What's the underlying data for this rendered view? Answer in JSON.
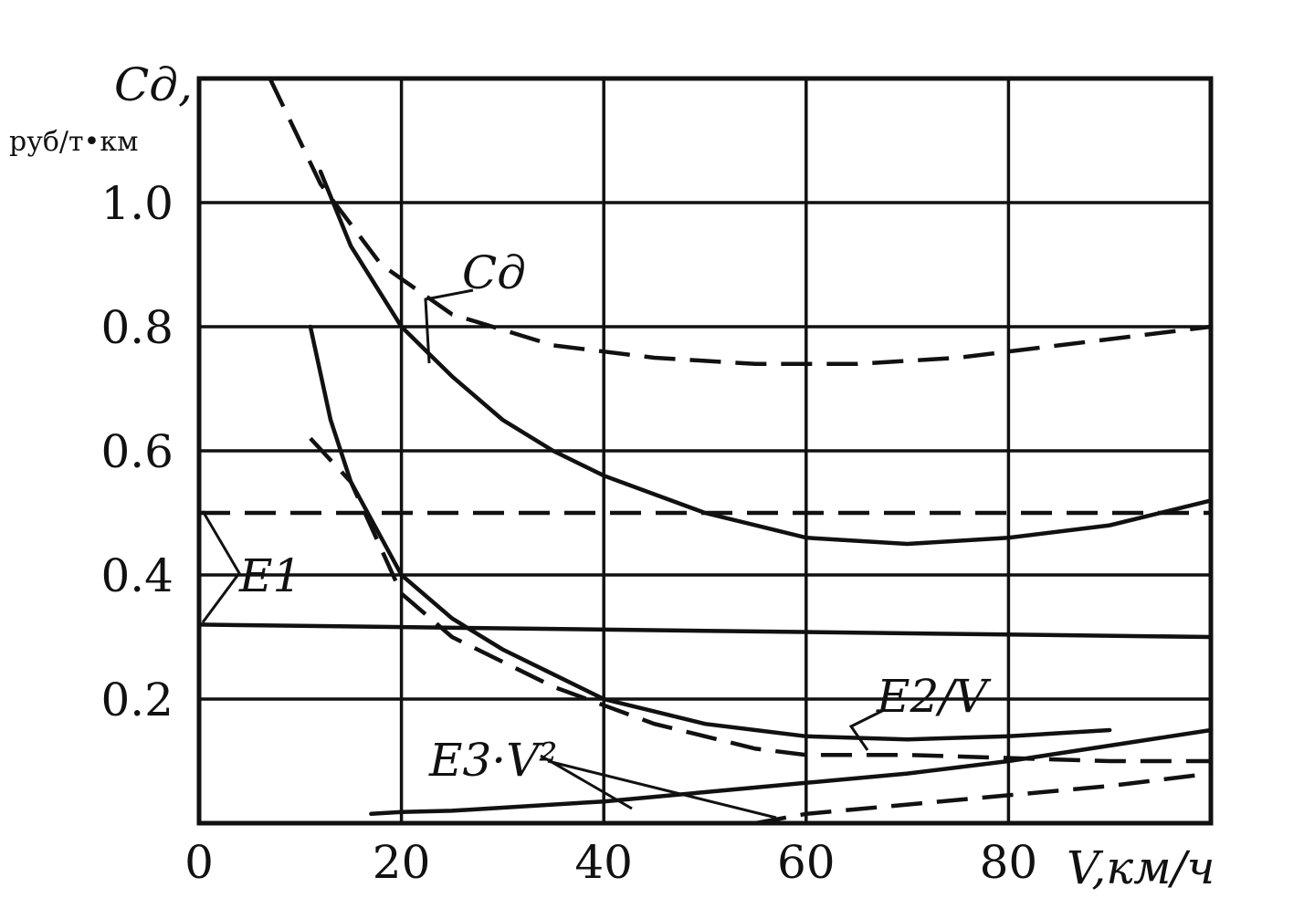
{
  "chart_data": {
    "type": "line",
    "ylabel": "Cд,",
    "yunit": "руб/т•км",
    "xlabel": "V,км/ч",
    "xlim": [
      0,
      100
    ],
    "ylim": [
      0,
      1.2
    ],
    "x_ticks": [
      "0",
      "20",
      "40",
      "60",
      "80"
    ],
    "y_ticks": [
      "0.2",
      "0.4",
      "0.6",
      "0.8",
      "1.0"
    ],
    "grid": true,
    "series": [
      {
        "name": "Cд",
        "style": "dashed",
        "x": [
          7,
          12,
          18,
          25,
          35,
          45,
          55,
          65,
          75,
          85,
          100
        ],
        "y": [
          1.2,
          1.03,
          0.9,
          0.82,
          0.77,
          0.75,
          0.74,
          0.74,
          0.75,
          0.77,
          0.8
        ]
      },
      {
        "name": "Cд",
        "style": "solid",
        "x": [
          12,
          15,
          20,
          25,
          30,
          35,
          40,
          45,
          50,
          55,
          60,
          65,
          70,
          75,
          80,
          90,
          100
        ],
        "y": [
          1.05,
          0.93,
          0.8,
          0.72,
          0.65,
          0.6,
          0.56,
          0.53,
          0.5,
          0.48,
          0.46,
          0.455,
          0.45,
          0.455,
          0.46,
          0.48,
          0.52
        ]
      },
      {
        "name": "E1",
        "style": "dashed",
        "x": [
          0,
          100
        ],
        "y": [
          0.5,
          0.5
        ]
      },
      {
        "name": "E1",
        "style": "solid",
        "x": [
          0,
          100
        ],
        "y": [
          0.32,
          0.3
        ]
      },
      {
        "name": "E2/V",
        "style": "solid",
        "x": [
          11,
          13,
          15,
          20,
          25,
          30,
          35,
          40,
          45,
          50,
          55,
          60,
          70,
          80,
          90
        ],
        "y": [
          0.8,
          0.65,
          0.55,
          0.4,
          0.33,
          0.28,
          0.24,
          0.2,
          0.18,
          0.16,
          0.15,
          0.14,
          0.135,
          0.14,
          0.15
        ]
      },
      {
        "name": "E2/V",
        "style": "dashed",
        "x": [
          11,
          15,
          20,
          25,
          30,
          35,
          40,
          45,
          50,
          55,
          60,
          70,
          80,
          90,
          100
        ],
        "y": [
          0.62,
          0.55,
          0.37,
          0.3,
          0.26,
          0.22,
          0.19,
          0.16,
          0.14,
          0.12,
          0.11,
          0.11,
          0.105,
          0.1,
          0.1
        ]
      },
      {
        "name": "E3·V²",
        "style": "solid",
        "x": [
          17,
          20,
          25,
          30,
          40,
          50,
          60,
          70,
          80,
          90,
          100
        ],
        "y": [
          0.015,
          0.018,
          0.02,
          0.025,
          0.035,
          0.05,
          0.065,
          0.08,
          0.1,
          0.125,
          0.15
        ]
      },
      {
        "name": "E3·V²",
        "style": "dashed",
        "x": [
          55,
          60,
          70,
          80,
          90,
          100
        ],
        "y": [
          0.0,
          0.015,
          0.03,
          0.045,
          0.06,
          0.08
        ]
      }
    ],
    "annotations": [
      "Cд",
      "E1",
      "E2/V",
      "E3·V²"
    ]
  }
}
